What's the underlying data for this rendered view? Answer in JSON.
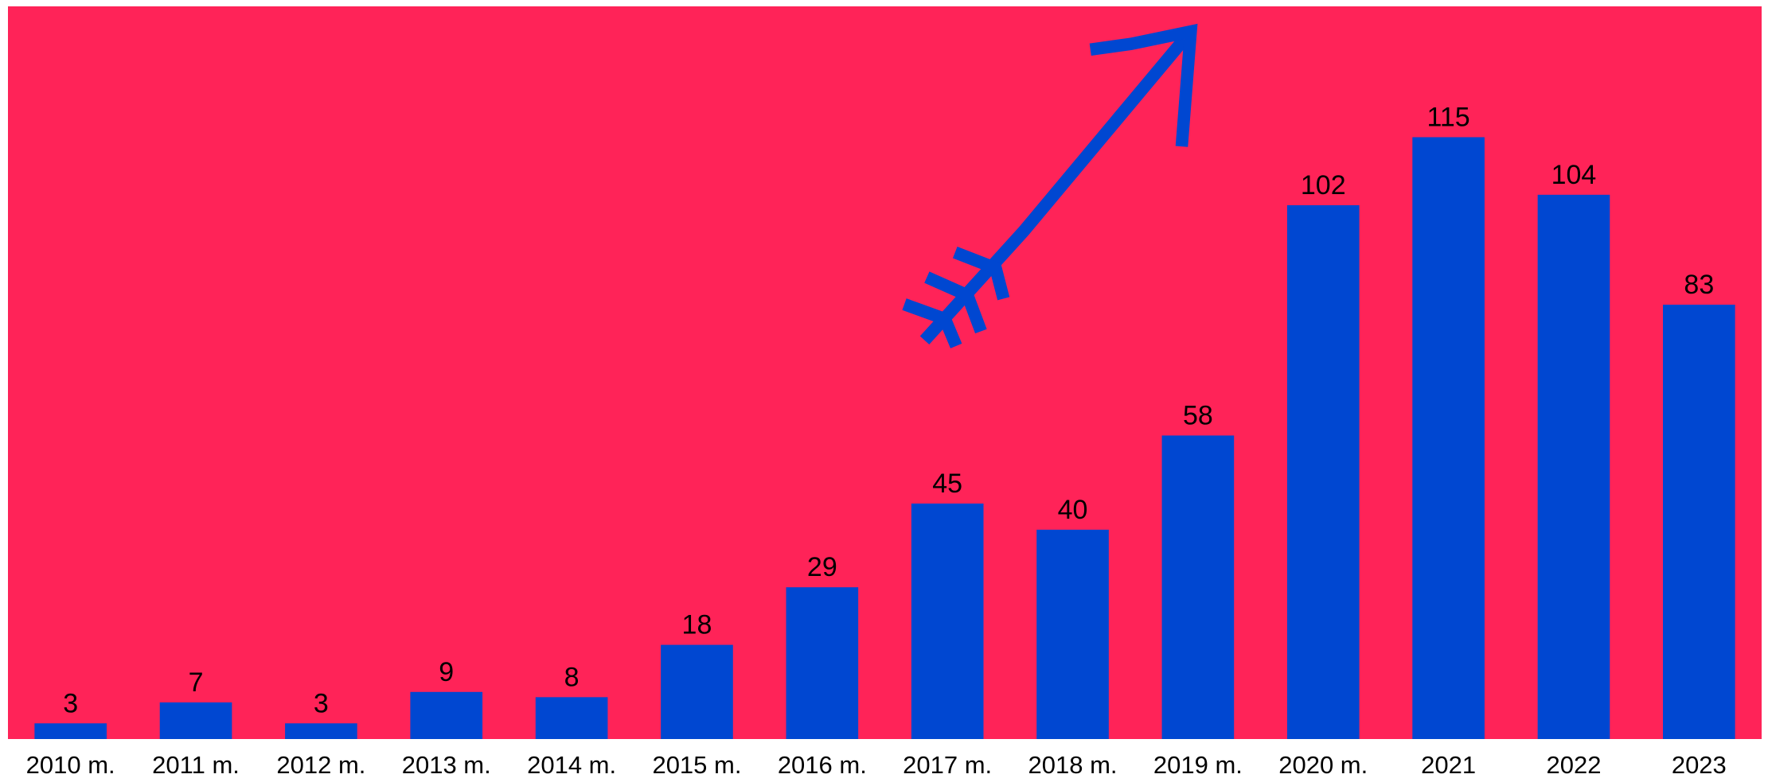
{
  "chart_data": {
    "type": "bar",
    "categories": [
      "2010 m.",
      "2011 m.",
      "2012 m.",
      "2013 m.",
      "2014 m.",
      "2015 m.",
      "2016 m.",
      "2017 m.",
      "2018 m.",
      "2019 m.",
      "2020 m.",
      "2021",
      "2022",
      "2023"
    ],
    "values": [
      3,
      7,
      3,
      9,
      8,
      18,
      29,
      45,
      40,
      58,
      102,
      115,
      104,
      83
    ],
    "color": "#0047d1",
    "background": "#ff2358",
    "ylim": [
      0,
      140
    ]
  }
}
